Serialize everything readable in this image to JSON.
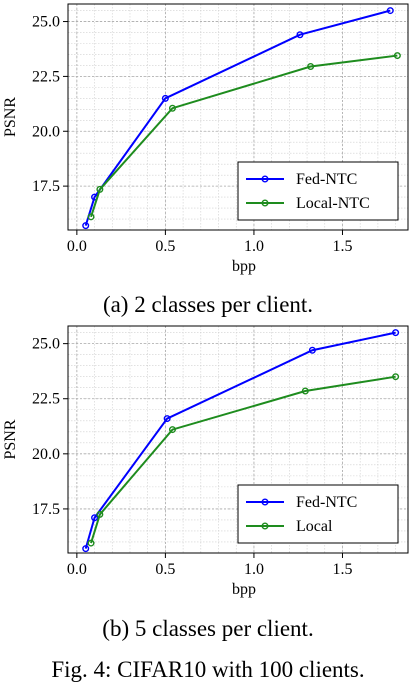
{
  "chart_data": [
    {
      "type": "line",
      "caption": "(a) 2 classes per client.",
      "xlabel": "bpp",
      "ylabel": "PSNR",
      "xlim": [
        -0.05,
        1.87
      ],
      "ylim": [
        15.5,
        25.8
      ],
      "xticks": [
        "0.0",
        "0.5",
        "1.0",
        "1.5"
      ],
      "yticks": [
        "17.5",
        "20.0",
        "22.5",
        "25.0"
      ],
      "grid": true,
      "legend": "bottom-right",
      "series": [
        {
          "name": "Fed-NTC",
          "color": "#0000ff",
          "x": [
            0.05,
            0.1,
            0.5,
            1.26,
            1.77
          ],
          "y": [
            15.7,
            17.0,
            21.5,
            24.4,
            25.5
          ]
        },
        {
          "name": "Local-NTC",
          "color": "#1e8c1e",
          "x": [
            0.08,
            0.13,
            0.54,
            1.32,
            1.81
          ],
          "y": [
            16.1,
            17.35,
            21.05,
            22.95,
            23.45
          ]
        }
      ]
    },
    {
      "type": "line",
      "caption": "(b) 5 classes per client.",
      "xlabel": "bpp",
      "ylabel": "PSNR",
      "xlim": [
        -0.05,
        1.87
      ],
      "ylim": [
        15.5,
        25.8
      ],
      "xticks": [
        "0.0",
        "0.5",
        "1.0",
        "1.5"
      ],
      "yticks": [
        "17.5",
        "20.0",
        "22.5",
        "25.0"
      ],
      "grid": true,
      "legend": "bottom-right",
      "series": [
        {
          "name": "Fed-NTC",
          "color": "#0000ff",
          "x": [
            0.05,
            0.1,
            0.51,
            1.33,
            1.8
          ],
          "y": [
            15.7,
            17.1,
            21.6,
            24.7,
            25.5
          ]
        },
        {
          "name": "Local",
          "color": "#1e8c1e",
          "x": [
            0.08,
            0.13,
            0.54,
            1.29,
            1.8
          ],
          "y": [
            15.95,
            17.25,
            21.1,
            22.85,
            23.5
          ]
        }
      ]
    }
  ],
  "figure_caption": "Fig. 4: CIFAR10 with 100 clients."
}
